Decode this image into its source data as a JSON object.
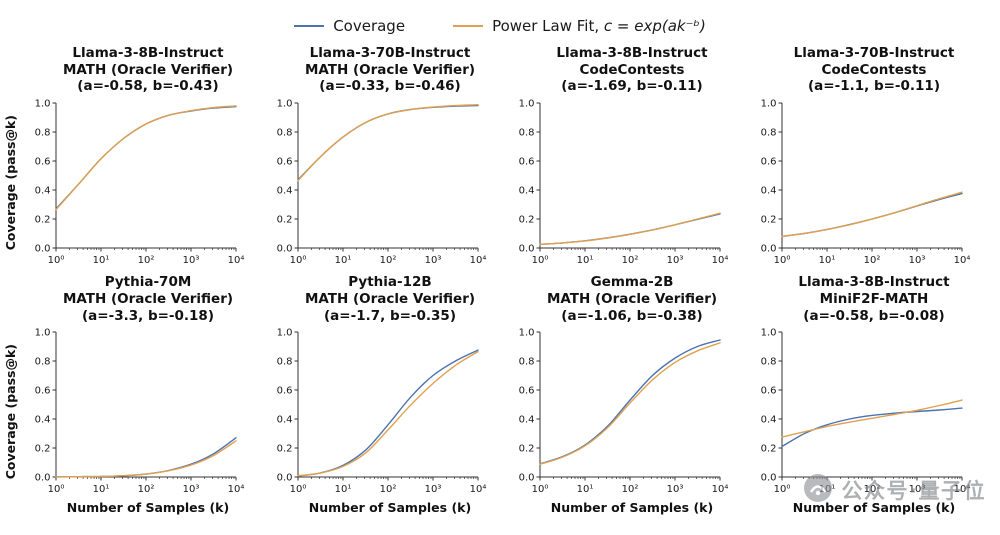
{
  "legend": {
    "series": [
      {
        "name": "Coverage",
        "color": "#4c72b0"
      },
      {
        "name": "Power Law Fit",
        "separator": ", ",
        "formula": "c = exp(ak⁻ᵇ)",
        "color": "#dfa14f"
      }
    ]
  },
  "axes": {
    "xlabel": "Number of Samples (k)",
    "ylabel": "Coverage (pass@k)",
    "x_ticks": [
      "10⁰",
      "10¹",
      "10²",
      "10³",
      "10⁴"
    ],
    "y_ticks": [
      "0.0",
      "0.2",
      "0.4",
      "0.6",
      "0.8",
      "1.0"
    ],
    "ylim": [
      0,
      1
    ],
    "xscale": "log",
    "xlim_log10": [
      0,
      4
    ]
  },
  "chart_data": [
    {
      "type": "line",
      "title_lines": [
        "Llama-3-8B-Instruct",
        "MATH (Oracle Verifier)",
        "(a=-0.58, b=-0.43)"
      ],
      "x_log10": [
        0,
        0.5,
        1,
        1.5,
        2,
        2.5,
        3,
        3.5,
        4
      ],
      "series": [
        {
          "name": "Coverage",
          "values": [
            0.27,
            0.44,
            0.615,
            0.755,
            0.855,
            0.915,
            0.945,
            0.965,
            0.975
          ]
        },
        {
          "name": "Power Law Fit",
          "values": [
            0.265,
            0.44,
            0.615,
            0.755,
            0.855,
            0.915,
            0.947,
            0.968,
            0.98
          ]
        }
      ]
    },
    {
      "type": "line",
      "title_lines": [
        "Llama-3-70B-Instruct",
        "MATH (Oracle Verifier)",
        "(a=-0.33, b=-0.46)"
      ],
      "x_log10": [
        0,
        0.5,
        1,
        1.5,
        2,
        2.5,
        3,
        3.5,
        4
      ],
      "series": [
        {
          "name": "Coverage",
          "values": [
            0.47,
            0.63,
            0.765,
            0.865,
            0.925,
            0.955,
            0.97,
            0.978,
            0.983
          ]
        },
        {
          "name": "Power Law Fit",
          "values": [
            0.465,
            0.63,
            0.765,
            0.865,
            0.925,
            0.955,
            0.972,
            0.982,
            0.988
          ]
        }
      ]
    },
    {
      "type": "line",
      "title_lines": [
        "Llama-3-8B-Instruct",
        "CodeContests",
        "(a=-1.69, b=-0.11)"
      ],
      "x_log10": [
        0,
        0.5,
        1,
        1.5,
        2,
        2.5,
        3,
        3.5,
        4
      ],
      "series": [
        {
          "name": "Coverage",
          "values": [
            0.025,
            0.035,
            0.05,
            0.07,
            0.095,
            0.125,
            0.16,
            0.198,
            0.235
          ]
        },
        {
          "name": "Power Law Fit",
          "values": [
            0.025,
            0.035,
            0.049,
            0.069,
            0.094,
            0.124,
            0.16,
            0.2,
            0.24
          ]
        }
      ]
    },
    {
      "type": "line",
      "title_lines": [
        "Llama-3-70B-Instruct",
        "CodeContests",
        "(a=-1.1, b=-0.11)"
      ],
      "x_log10": [
        0,
        0.5,
        1,
        1.5,
        2,
        2.5,
        3,
        3.5,
        4
      ],
      "series": [
        {
          "name": "Coverage",
          "values": [
            0.08,
            0.101,
            0.128,
            0.162,
            0.2,
            0.243,
            0.29,
            0.335,
            0.375
          ]
        },
        {
          "name": "Power Law Fit",
          "values": [
            0.08,
            0.1,
            0.127,
            0.16,
            0.199,
            0.243,
            0.292,
            0.34,
            0.385
          ]
        }
      ]
    },
    {
      "type": "line",
      "title_lines": [
        "Pythia-70M",
        "MATH (Oracle Verifier)",
        "(a=-3.3, b=-0.18)"
      ],
      "x_log10": [
        0,
        0.5,
        1,
        1.5,
        2,
        2.5,
        3,
        3.5,
        4
      ],
      "series": [
        {
          "name": "Coverage",
          "values": [
            0.001,
            0.002,
            0.004,
            0.009,
            0.02,
            0.045,
            0.088,
            0.16,
            0.27
          ]
        },
        {
          "name": "Power Law Fit",
          "values": [
            0.001,
            0.002,
            0.004,
            0.009,
            0.02,
            0.043,
            0.082,
            0.148,
            0.25
          ]
        }
      ]
    },
    {
      "type": "line",
      "title_lines": [
        "Pythia-12B",
        "MATH (Oracle Verifier)",
        "(a=-1.7, b=-0.35)"
      ],
      "x_log10": [
        0,
        0.5,
        1,
        1.5,
        2,
        2.5,
        3,
        3.5,
        4
      ],
      "series": [
        {
          "name": "Coverage",
          "values": [
            0.008,
            0.028,
            0.08,
            0.185,
            0.36,
            0.55,
            0.7,
            0.8,
            0.875
          ]
        },
        {
          "name": "Power Law Fit",
          "values": [
            0.008,
            0.027,
            0.073,
            0.165,
            0.325,
            0.495,
            0.645,
            0.77,
            0.865
          ]
        }
      ]
    },
    {
      "type": "line",
      "title_lines": [
        "Gemma-2B",
        "MATH (Oracle Verifier)",
        "(a=-1.06, b=-0.38)"
      ],
      "x_log10": [
        0,
        0.5,
        1,
        1.5,
        2,
        2.5,
        3,
        3.5,
        4
      ],
      "series": [
        {
          "name": "Coverage",
          "values": [
            0.09,
            0.14,
            0.22,
            0.35,
            0.53,
            0.7,
            0.82,
            0.9,
            0.945
          ]
        },
        {
          "name": "Power Law Fit",
          "values": [
            0.088,
            0.137,
            0.215,
            0.34,
            0.51,
            0.67,
            0.79,
            0.87,
            0.925
          ]
        }
      ]
    },
    {
      "type": "line",
      "title_lines": [
        "Llama-3-8B-Instruct",
        "MiniF2F-MATH",
        "(a=-0.58, b=-0.08)"
      ],
      "x_log10": [
        0,
        0.5,
        1,
        1.5,
        2,
        2.5,
        3,
        3.5,
        4
      ],
      "series": [
        {
          "name": "Coverage",
          "values": [
            0.21,
            0.3,
            0.36,
            0.4,
            0.425,
            0.44,
            0.452,
            0.462,
            0.475
          ]
        },
        {
          "name": "Power Law Fit",
          "values": [
            0.275,
            0.312,
            0.348,
            0.378,
            0.405,
            0.432,
            0.46,
            0.493,
            0.53
          ]
        }
      ]
    }
  ],
  "watermark": {
    "text": "公众号·量子位"
  }
}
